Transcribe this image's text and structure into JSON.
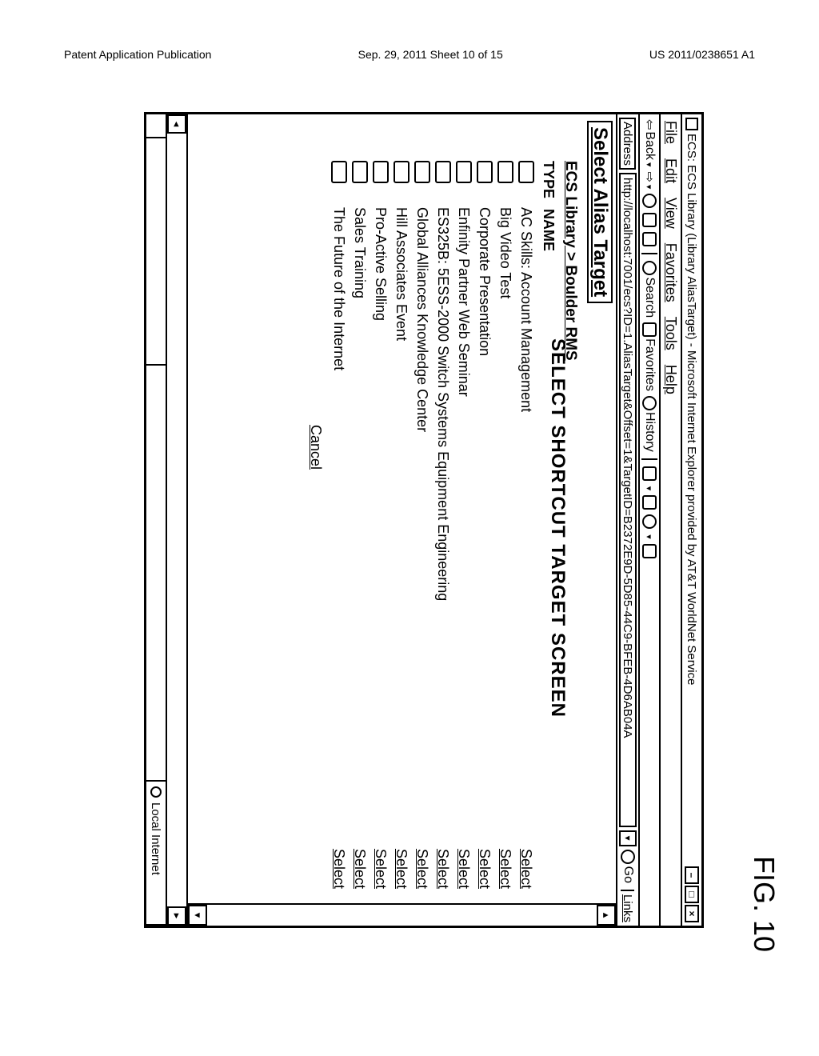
{
  "patent_header": {
    "left": "Patent Application Publication",
    "center": "Sep. 29, 2011  Sheet 10 of 15",
    "right": "US 2011/0238651 A1"
  },
  "window": {
    "title": "ECS: ECS Library (Library AliasTarget) - Microsoft Internet Explorer provided by AT&T WorldNet Service",
    "menus": [
      "File",
      "Edit",
      "View",
      "Favorites",
      "Tools",
      "Help"
    ],
    "toolbar": {
      "back": "Back",
      "search": "Search",
      "favorites": "Favorites",
      "history": "History"
    },
    "address_label": "Address",
    "address_url": "http://localhost:7001/ecs?ID=1.AliasTarget&Offset=1&TargetID=B2372E9D-5D85-44C9-BFEB-4D6AB04A",
    "go_label": "Go",
    "links_label": "Links",
    "page_heading": "Select Alias Target",
    "breadcrumb": "ECS Library > Boulder RMS",
    "col_type": "TYPE",
    "col_name": "NAME",
    "rows": [
      "AC Skills: Account Management",
      "Big Video Test",
      "Corporate Presentation",
      "Enfinity Partner Web Seminar",
      "ES325B: 5ESS-2000 Switch Systems Equipment Engineering",
      "Global Alliances Knowledge Center",
      "Hill Associates Event",
      "Pro-Active Selling",
      "Sales Training",
      "The Future of the Internet"
    ],
    "select_label": "Select",
    "cancel_label": "Cancel",
    "status_zone": "Local Internet"
  },
  "caption": "SELECT SHORTCUT TARGET SCREEN",
  "figure_label": "FIG. 10"
}
